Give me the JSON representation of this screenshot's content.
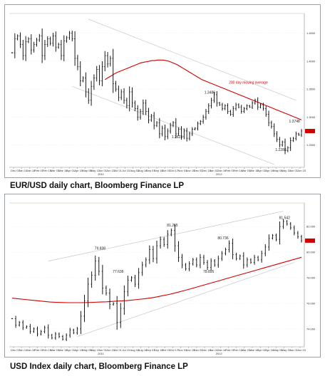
{
  "captions": [
    "EUR/USD daily chart, Bloomberg Finance LP",
    "USD Index daily chart, Bloomberg Finance LP"
  ],
  "colors": {
    "price": "#000000",
    "ma": "#d40000",
    "channel": "#c8c8c8",
    "grid": "#e4e4e4",
    "last_tag": "#d40000"
  },
  "chart_data": [
    {
      "type": "line",
      "subtype": "ohlc",
      "title": "",
      "xlabel": "",
      "ylabel": "",
      "x_ticks": [
        "Dec 07",
        "Jan 10",
        "Jan 18",
        "Feb 01",
        "Feb 15",
        "Mar 01",
        "Mar 15",
        "Apr 01",
        "Apr 15",
        "May 03",
        "May 17",
        "Jun 01",
        "Jun 15",
        "Jul 01",
        "Jul 15",
        "Aug 02",
        "Aug 16",
        "Sep 01",
        "Sep 15",
        "Oct 03",
        "Oct 17",
        "Nov 01",
        "Nov 15",
        "Dec 01",
        "Dec 15",
        "Jan 02",
        "Jan 16",
        "Feb 01",
        "Feb 14",
        "Mar 01",
        "Mar 15",
        "Apr 02",
        "Apr 16",
        "May 01",
        "May 15",
        "Jun 01",
        "Jun 15"
      ],
      "year_labels": [
        "2011",
        "2012"
      ],
      "y_ticks": [
        "1.4500",
        "1.4000",
        "1.3500",
        "1.3000",
        "1.2500"
      ],
      "ylim": [
        1.21,
        1.475
      ],
      "series": [
        {
          "name": "",
          "values": [
            1.415,
            1.44,
            1.445,
            1.43,
            1.41,
            1.435,
            1.44,
            1.42,
            1.43,
            1.438,
            1.445,
            1.41,
            1.43,
            1.44,
            1.432,
            1.445,
            1.425,
            1.43,
            1.41,
            1.436,
            1.442,
            1.45,
            1.44,
            1.405,
            1.39,
            1.365,
            1.37,
            1.345,
            1.33,
            1.355,
            1.37,
            1.385,
            1.365,
            1.39,
            1.41,
            1.395,
            1.405,
            1.36,
            1.35,
            1.335,
            1.345,
            1.33,
            1.32,
            1.345,
            1.325,
            1.315,
            1.3,
            1.31,
            1.325,
            1.31,
            1.295,
            1.302,
            1.285,
            1.29,
            1.27,
            1.28,
            1.265,
            1.275,
            1.285,
            1.29,
            1.27,
            1.278,
            1.265,
            1.275,
            1.262,
            1.27,
            1.278,
            1.28,
            1.288,
            1.292,
            1.3,
            1.31,
            1.32,
            1.33,
            1.34,
            1.325,
            1.322,
            1.315,
            1.32,
            1.31,
            1.305,
            1.315,
            1.322,
            1.318,
            1.31,
            1.315,
            1.32,
            1.318,
            1.325,
            1.33,
            1.318,
            1.322,
            1.315,
            1.305,
            1.29,
            1.283,
            1.27,
            1.26,
            1.25,
            1.255,
            1.24,
            1.245,
            1.258,
            1.262,
            1.27,
            1.268,
            1.275
          ]
        },
        {
          "name": "200 day moving average",
          "values": [
            1.367,
            1.37,
            1.373,
            1.376,
            1.379,
            1.381,
            1.383,
            1.385,
            1.387,
            1.389,
            1.391,
            1.393,
            1.395,
            1.397,
            1.398,
            1.399,
            1.4,
            1.401,
            1.401,
            1.402,
            1.402,
            1.402,
            1.401,
            1.4,
            1.398,
            1.396,
            1.394,
            1.391,
            1.388,
            1.385,
            1.382,
            1.379,
            1.376,
            1.373,
            1.37,
            1.367,
            1.365,
            1.363,
            1.361,
            1.359,
            1.357,
            1.355,
            1.353,
            1.351,
            1.349,
            1.347,
            1.345,
            1.343,
            1.341,
            1.339,
            1.337,
            1.335,
            1.333,
            1.331,
            1.329,
            1.327,
            1.325,
            1.323,
            1.321,
            1.319,
            1.317,
            1.315,
            1.313,
            1.311,
            1.309,
            1.307,
            1.305,
            1.303,
            1.301,
            1.299,
            1.297,
            1.295
          ]
        }
      ],
      "annotations": [
        {
          "text": "1.3486",
          "x_index": 72,
          "y": 1.342
        },
        {
          "text": "1.2623",
          "x_index": 60,
          "y": 1.262
        },
        {
          "text": "1.3748",
          "x_index": 103,
          "y": 1.29
        },
        {
          "text": "1.2288",
          "x_index": 98,
          "y": 1.239
        },
        {
          "text": "200 day moving average",
          "x_index": 82,
          "y": 1.36
        }
      ]
    },
    {
      "type": "line",
      "subtype": "ohlc",
      "title": "",
      "xlabel": "",
      "ylabel": "",
      "x_ticks": [
        "Dec 07",
        "Jan 10",
        "Jan 18",
        "Feb 01",
        "Feb 15",
        "Mar 01",
        "Mar 15",
        "Apr 01",
        "Apr 15",
        "May 03",
        "May 17",
        "Jun 01",
        "Jun 15",
        "Jul 01",
        "Jul 15",
        "Aug 02",
        "Aug 16",
        "Sep 01",
        "Sep 15",
        "Oct 03",
        "Oct 17",
        "Nov 01",
        "Nov 15",
        "Dec 01",
        "Dec 15",
        "Jan 02",
        "Jan 16",
        "Feb 01",
        "Feb 14",
        "Mar 01",
        "Mar 15",
        "Apr 02",
        "Apr 16",
        "May 01",
        "May 15",
        "Jun 01",
        "Jun 15"
      ],
      "year_labels": [
        "2011",
        "2012"
      ],
      "y_ticks": [
        "82.000",
        "80.000",
        "78.000",
        "76.000",
        "74.000"
      ],
      "ylim": [
        72.6,
        83.4
      ],
      "series": [
        {
          "name": "",
          "values": [
            74.8,
            74.3,
            74.5,
            74.1,
            74.2,
            73.8,
            74.0,
            73.6,
            73.8,
            74.1,
            73.5,
            73.3,
            73.6,
            73.4,
            73.2,
            73.5,
            73.9,
            73.7,
            74.0,
            75.0,
            76.2,
            77.5,
            78.2,
            79.3,
            78.5,
            77.2,
            76.8,
            75.9,
            76.0,
            74.5,
            75.6,
            76.9,
            77.8,
            78.0,
            77.5,
            78.4,
            79.0,
            79.4,
            80.2,
            79.5,
            80.5,
            81.0,
            80.6,
            81.4,
            81.7,
            80.5,
            79.6,
            79.0,
            78.7,
            79.1,
            79.4,
            79.0,
            79.6,
            79.2,
            78.8,
            79.3,
            79.0,
            79.5,
            79.9,
            80.2,
            80.7,
            79.8,
            79.5,
            79.7,
            79.0,
            79.4,
            79.2,
            79.6,
            79.4,
            79.9,
            80.4,
            81.1,
            81.3,
            81.0,
            82.0,
            82.4,
            82.2,
            81.9,
            81.5,
            81.2,
            80.9
          ]
        },
        {
          "name": "",
          "values": [
            76.4,
            76.35,
            76.3,
            76.25,
            76.2,
            76.15,
            76.1,
            76.08,
            76.06,
            76.05,
            76.05,
            76.05,
            76.06,
            76.08,
            76.1,
            76.12,
            76.15,
            76.18,
            76.2,
            76.25,
            76.3,
            76.35,
            76.42,
            76.5,
            76.6,
            76.7,
            76.82,
            76.95,
            77.08,
            77.22,
            77.36,
            77.5,
            77.64,
            77.78,
            77.92,
            78.06,
            78.2,
            78.34,
            78.48,
            78.62,
            78.76,
            78.9,
            79.04,
            79.18,
            79.32,
            79.46,
            79.6
          ]
        }
      ],
      "annotations": [
        {
          "text": "81.542",
          "x_index": 75,
          "y": 82.6
        },
        {
          "text": "81.265",
          "x_index": 44,
          "y": 82.0
        },
        {
          "text": "79.838",
          "x_index": 24,
          "y": 80.2
        },
        {
          "text": "80.736",
          "x_index": 58,
          "y": 81.0
        },
        {
          "text": "77.636",
          "x_index": 29,
          "y": 78.4
        },
        {
          "text": "78.895",
          "x_index": 54,
          "y": 78.4
        }
      ]
    }
  ]
}
